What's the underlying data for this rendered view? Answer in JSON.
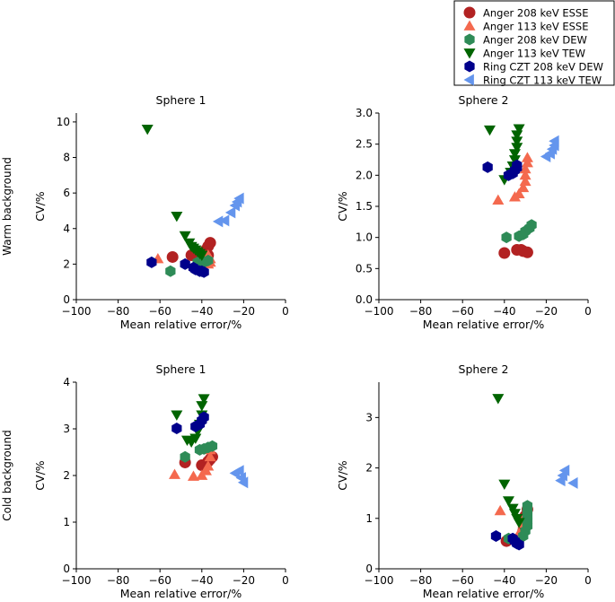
{
  "legend": {
    "position": "top-right",
    "entries": [
      {
        "label": "Anger 208 keV ESSE",
        "color": "#b22222",
        "marker": "circle"
      },
      {
        "label": "Anger 113 keV ESSE",
        "color": "#f4694e",
        "marker": "triangle-up"
      },
      {
        "label": "Anger 208 keV DEW",
        "color": "#2e8b57",
        "marker": "hexagon"
      },
      {
        "label": "Anger 113 keV TEW",
        "color": "#006400",
        "marker": "triangle-down"
      },
      {
        "label": "Ring CZT 208 keV DEW",
        "color": "#00008b",
        "marker": "hexagon"
      },
      {
        "label": "Ring CZT 113 keV TEW",
        "color": "#6495ed",
        "marker": "triangle-left"
      }
    ]
  },
  "row_labels": [
    "Warm background",
    "Cold background"
  ],
  "chart_data": [
    {
      "type": "scatter",
      "title": "Sphere 1",
      "row": "Warm background",
      "xlabel": "Mean relative error/%",
      "ylabel": "CV/%",
      "xlim": [
        -100,
        0
      ],
      "ylim": [
        0,
        10.5
      ],
      "xticks": [
        -100,
        -80,
        -60,
        -40,
        -20,
        0
      ],
      "yticks": [
        0,
        2,
        4,
        6,
        8,
        10
      ],
      "ytick_labels": [
        "0",
        "2",
        "4",
        "6",
        "8",
        "10"
      ],
      "series": [
        {
          "name": "Anger 208 keV ESSE",
          "points": [
            [
              -54,
              2.4
            ],
            [
              -45,
              2.5
            ],
            [
              -40,
              2.6
            ],
            [
              -38,
              2.8
            ],
            [
              -37,
              3.0
            ],
            [
              -36,
              3.2
            ],
            [
              -37,
              2.5
            ]
          ]
        },
        {
          "name": "Anger 113 keV ESSE",
          "points": [
            [
              -61,
              2.3
            ],
            [
              -37,
              2.0
            ],
            [
              -36,
              2.1
            ],
            [
              -36,
              2.3
            ],
            [
              -37,
              2.5
            ]
          ]
        },
        {
          "name": "Anger 208 keV DEW",
          "points": [
            [
              -55,
              1.6
            ],
            [
              -42,
              2.1
            ],
            [
              -39,
              2.1
            ],
            [
              -37,
              2.2
            ]
          ]
        },
        {
          "name": "Anger 113 keV TEW",
          "points": [
            [
              -66,
              9.6
            ],
            [
              -52,
              4.7
            ],
            [
              -48,
              3.6
            ],
            [
              -46,
              3.2
            ],
            [
              -45,
              3.0
            ],
            [
              -44,
              2.9
            ],
            [
              -43,
              2.8
            ],
            [
              -42,
              2.7
            ],
            [
              -41,
              2.6
            ],
            [
              -40,
              2.5
            ]
          ]
        },
        {
          "name": "Ring CZT 208 keV DEW",
          "points": [
            [
              -64,
              2.1
            ],
            [
              -48,
              2.0
            ],
            [
              -44,
              1.8
            ],
            [
              -43,
              1.7
            ],
            [
              -41,
              1.6
            ],
            [
              -40,
              1.6
            ],
            [
              -39,
              1.55
            ]
          ]
        },
        {
          "name": "Ring CZT 113 keV TEW",
          "points": [
            [
              -32,
              4.4
            ],
            [
              -29,
              4.45
            ],
            [
              -26,
              4.9
            ],
            [
              -24,
              5.3
            ],
            [
              -23,
              5.5
            ],
            [
              -22,
              5.7
            ]
          ]
        }
      ]
    },
    {
      "type": "scatter",
      "title": "Sphere 2",
      "row": "Warm background",
      "xlabel": "Mean relative error/%",
      "ylabel": "CV/%",
      "xlim": [
        -100,
        0
      ],
      "ylim": [
        0,
        3.0
      ],
      "xticks": [
        -100,
        -80,
        -60,
        -40,
        -20,
        0
      ],
      "yticks": [
        0,
        0.5,
        1.0,
        1.5,
        2.0,
        2.5,
        3.0
      ],
      "ytick_labels": [
        "0.0",
        "0.5",
        "1.0",
        "1.5",
        "2.0",
        "2.5",
        "3.0"
      ],
      "series": [
        {
          "name": "Anger 208 keV ESSE",
          "points": [
            [
              -40,
              0.75
            ],
            [
              -34,
              0.8
            ],
            [
              -32,
              0.8
            ],
            [
              -31,
              0.78
            ],
            [
              -29,
              0.76
            ]
          ]
        },
        {
          "name": "Anger 113 keV ESSE",
          "points": [
            [
              -43,
              1.6
            ],
            [
              -35,
              1.65
            ],
            [
              -33,
              1.7
            ],
            [
              -31,
              1.8
            ],
            [
              -30,
              1.9
            ],
            [
              -30,
              2.0
            ],
            [
              -30,
              2.1
            ],
            [
              -29,
              2.2
            ],
            [
              -29,
              2.28
            ]
          ]
        },
        {
          "name": "Anger 208 keV DEW",
          "points": [
            [
              -39,
              1.0
            ],
            [
              -33,
              1.02
            ],
            [
              -31,
              1.05
            ],
            [
              -30,
              1.1
            ],
            [
              -28,
              1.15
            ],
            [
              -27,
              1.2
            ]
          ]
        },
        {
          "name": "Anger 113 keV TEW",
          "points": [
            [
              -47,
              2.73
            ],
            [
              -40,
              1.93
            ],
            [
              -37,
              2.05
            ],
            [
              -36,
              2.15
            ],
            [
              -35,
              2.25
            ],
            [
              -35,
              2.35
            ],
            [
              -34,
              2.45
            ],
            [
              -34,
              2.55
            ],
            [
              -34,
              2.65
            ],
            [
              -33,
              2.75
            ]
          ]
        },
        {
          "name": "Ring CZT 208 keV DEW",
          "points": [
            [
              -48,
              2.13
            ],
            [
              -38,
              2.0
            ],
            [
              -36,
              2.03
            ],
            [
              -35,
              2.08
            ],
            [
              -34,
              2.12
            ],
            [
              -34,
              2.16
            ]
          ]
        },
        {
          "name": "Ring CZT 113 keV TEW",
          "points": [
            [
              -20,
              2.3
            ],
            [
              -18,
              2.35
            ],
            [
              -17,
              2.42
            ],
            [
              -16,
              2.48
            ],
            [
              -16,
              2.55
            ]
          ]
        }
      ]
    },
    {
      "type": "scatter",
      "title": "Sphere 1",
      "row": "Cold background",
      "xlabel": "Mean relative error/%",
      "ylabel": "CV/%",
      "xlim": [
        -100,
        0
      ],
      "ylim": [
        0,
        4.0
      ],
      "xticks": [
        -100,
        -80,
        -60,
        -40,
        -20,
        0
      ],
      "yticks": [
        0,
        1,
        2,
        3,
        4
      ],
      "ytick_labels": [
        "0",
        "1",
        "2",
        "3",
        "4"
      ],
      "series": [
        {
          "name": "Anger 208 keV ESSE",
          "points": [
            [
              -48,
              2.28
            ],
            [
              -40,
              2.22
            ],
            [
              -37,
              2.3
            ],
            [
              -36,
              2.35
            ],
            [
              -35,
              2.4
            ]
          ]
        },
        {
          "name": "Anger 113 keV ESSE",
          "points": [
            [
              -53,
              2.02
            ],
            [
              -44,
              1.98
            ],
            [
              -40,
              2.0
            ],
            [
              -38,
              2.1
            ],
            [
              -37,
              2.2
            ],
            [
              -36,
              2.4
            ],
            [
              -36,
              2.55
            ]
          ]
        },
        {
          "name": "Anger 208 keV DEW",
          "points": [
            [
              -48,
              2.4
            ],
            [
              -41,
              2.55
            ],
            [
              -39,
              2.57
            ],
            [
              -37,
              2.6
            ],
            [
              -35,
              2.63
            ]
          ]
        },
        {
          "name": "Anger 113 keV TEW",
          "points": [
            [
              -52,
              3.3
            ],
            [
              -47,
              2.76
            ],
            [
              -45,
              2.72
            ],
            [
              -43,
              2.8
            ],
            [
              -42,
              2.95
            ],
            [
              -41,
              3.1
            ],
            [
              -40,
              3.3
            ],
            [
              -40,
              3.5
            ],
            [
              -39,
              3.65
            ]
          ]
        },
        {
          "name": "Ring CZT 208 keV DEW",
          "points": [
            [
              -52,
              3.01
            ],
            [
              -43,
              3.05
            ],
            [
              -41,
              3.1
            ],
            [
              -40,
              3.18
            ],
            [
              -39,
              3.25
            ]
          ]
        },
        {
          "name": "Ring CZT 113 keV TEW",
          "points": [
            [
              -24,
              2.05
            ],
            [
              -22,
              2.1
            ],
            [
              -21,
              1.95
            ],
            [
              -20,
              1.85
            ]
          ]
        }
      ]
    },
    {
      "type": "scatter",
      "title": "Sphere 2",
      "row": "Cold background",
      "xlabel": "Mean relative error/%",
      "ylabel": "CV/%",
      "xlim": [
        -100,
        0
      ],
      "ylim": [
        0,
        3.7
      ],
      "xticks": [
        -100,
        -80,
        -60,
        -40,
        -20,
        0
      ],
      "yticks": [
        0,
        1,
        2,
        3
      ],
      "ytick_labels": [
        "0",
        "1",
        "2",
        "3"
      ],
      "series": [
        {
          "name": "Anger 208 keV ESSE",
          "points": [
            [
              -39,
              0.55
            ],
            [
              -33,
              0.6
            ],
            [
              -31,
              0.75
            ],
            [
              -30,
              0.9
            ],
            [
              -30,
              1.05
            ],
            [
              -29,
              1.18
            ]
          ]
        },
        {
          "name": "Anger 113 keV ESSE",
          "points": [
            [
              -42,
              1.15
            ],
            [
              -33,
              0.7
            ],
            [
              -31,
              0.9
            ],
            [
              -30,
              1.05
            ]
          ]
        },
        {
          "name": "Anger 208 keV DEW",
          "points": [
            [
              -38,
              0.6
            ],
            [
              -31,
              0.65
            ],
            [
              -30,
              0.75
            ],
            [
              -29,
              0.85
            ],
            [
              -29,
              0.95
            ],
            [
              -29,
              1.05
            ],
            [
              -29,
              1.15
            ],
            [
              -29,
              1.25
            ]
          ]
        },
        {
          "name": "Anger 113 keV TEW",
          "points": [
            [
              -43,
              3.38
            ],
            [
              -40,
              1.68
            ],
            [
              -38,
              1.35
            ],
            [
              -36,
              1.2
            ],
            [
              -35,
              1.1
            ],
            [
              -34,
              1.0
            ],
            [
              -33,
              0.92
            ]
          ]
        },
        {
          "name": "Ring CZT 208 keV DEW",
          "points": [
            [
              -44,
              0.65
            ],
            [
              -36,
              0.6
            ],
            [
              -35,
              0.55
            ],
            [
              -34,
              0.5
            ],
            [
              -33,
              0.48
            ]
          ]
        },
        {
          "name": "Ring CZT 113 keV TEW",
          "points": [
            [
              -13,
              1.75
            ],
            [
              -12,
              1.85
            ],
            [
              -11,
              1.95
            ],
            [
              -7,
              1.7
            ]
          ]
        }
      ]
    }
  ]
}
